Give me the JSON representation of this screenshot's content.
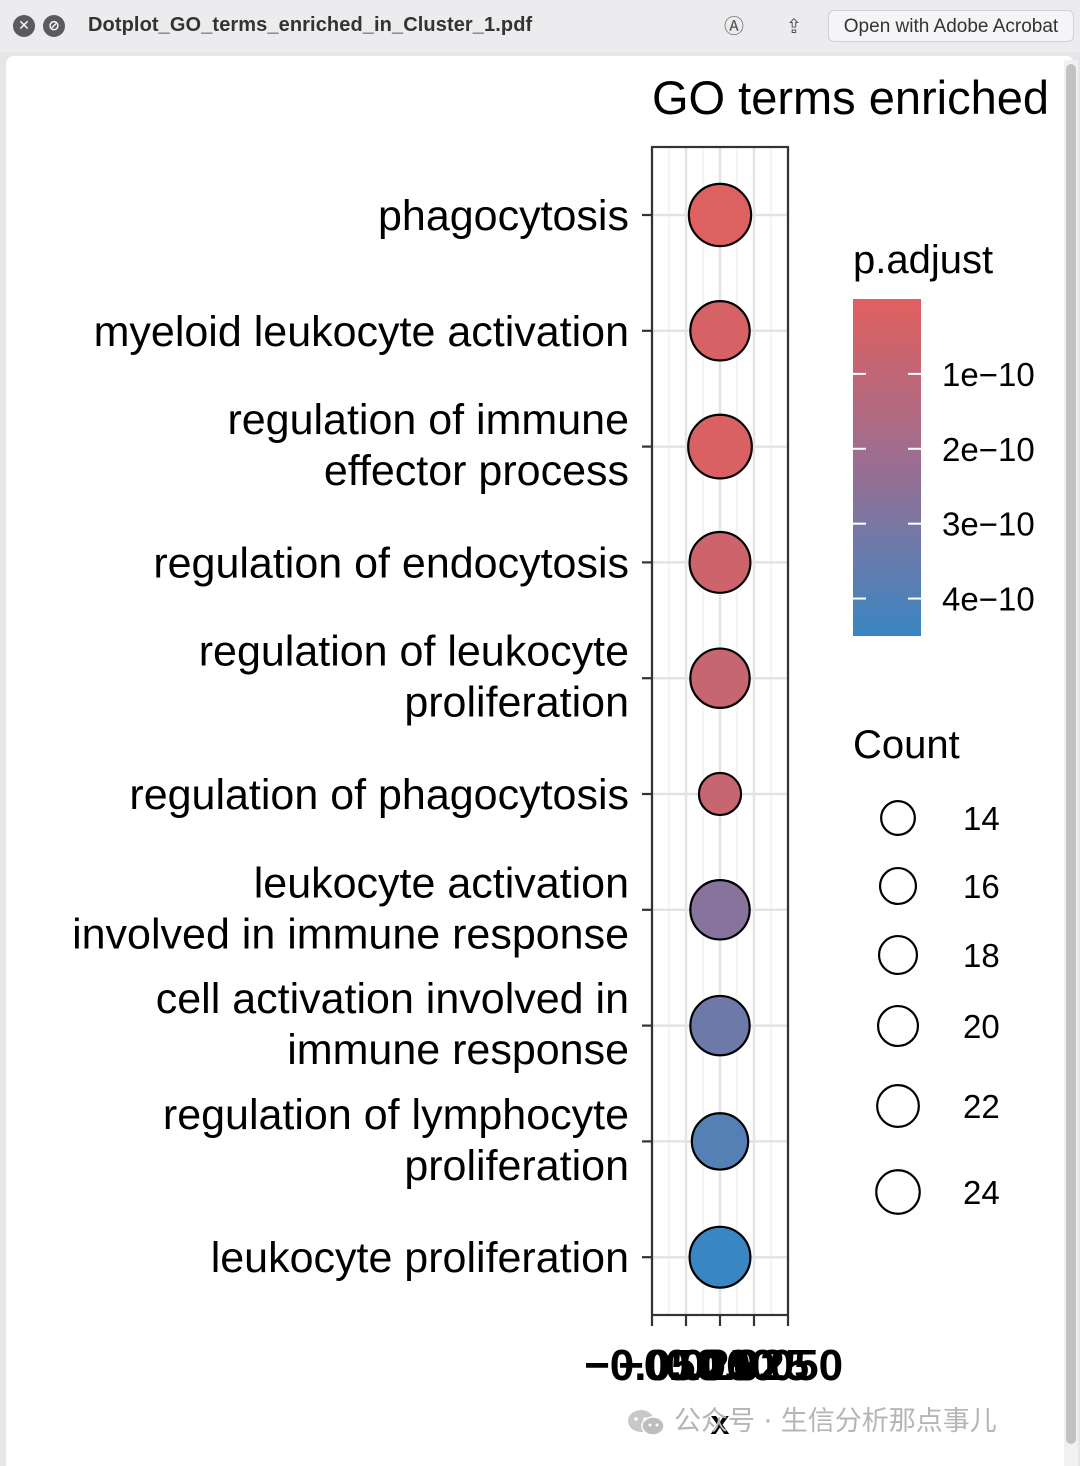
{
  "window": {
    "filename": "Dotplot_GO_terms_enriched_in_Cluster_1.pdf",
    "open_with_label": "Open with Adobe Acrobat",
    "close_glyph": "✕",
    "minimize_glyph": "⊘",
    "markup_glyph": "Ⓐ",
    "share_glyph": "⇪"
  },
  "watermark": {
    "text": "公众号 · 生信分析那点事儿"
  },
  "colors": {
    "low_padj": "#e0605e",
    "high_padj": "#3a86c3"
  },
  "chart_data": {
    "type": "scatter",
    "title": "GO terms enriched",
    "xlabel": "x",
    "ylabel": "",
    "xlim": [
      -0.05,
      0.05
    ],
    "x_ticks": [
      "−0.050",
      "−0.025",
      "0.000",
      "0.025",
      "0.050"
    ],
    "categories": [
      [
        "phagocytosis"
      ],
      [
        "myeloid leukocyte activation"
      ],
      [
        "regulation of immune",
        "effector process"
      ],
      [
        "regulation of endocytosis"
      ],
      [
        "regulation of leukocyte",
        "proliferation"
      ],
      [
        "regulation of phagocytosis"
      ],
      [
        "leukocyte activation",
        "involved in immune response"
      ],
      [
        "cell activation involved in",
        "immune response"
      ],
      [
        "regulation of lymphocyte",
        "proliferation"
      ],
      [
        "leukocyte proliferation"
      ]
    ],
    "x": [
      0,
      0,
      0,
      0,
      0,
      0,
      0,
      0,
      0,
      0
    ],
    "count": [
      23,
      21,
      24,
      22,
      21,
      11,
      21,
      21,
      19,
      22
    ],
    "p_adjust": [
      1e-11,
      3e-11,
      2e-11,
      6e-11,
      8e-11,
      8e-11,
      2.7e-10,
      3.3e-10,
      3.9e-10,
      4.6e-10
    ],
    "color_legend": {
      "title": "p.adjust",
      "ticks": [
        "1e−10",
        "2e−10",
        "3e−10",
        "4e−10"
      ],
      "tick_values": [
        1e-10,
        2e-10,
        3e-10,
        4e-10
      ],
      "range": [
        0,
        4.5e-10
      ]
    },
    "size_legend": {
      "title": "Count",
      "labels": [
        "14",
        "16",
        "18",
        "20",
        "22",
        "24"
      ],
      "values": [
        14,
        16,
        18,
        20,
        22,
        24
      ]
    },
    "grid": true,
    "legend_position": "right"
  }
}
